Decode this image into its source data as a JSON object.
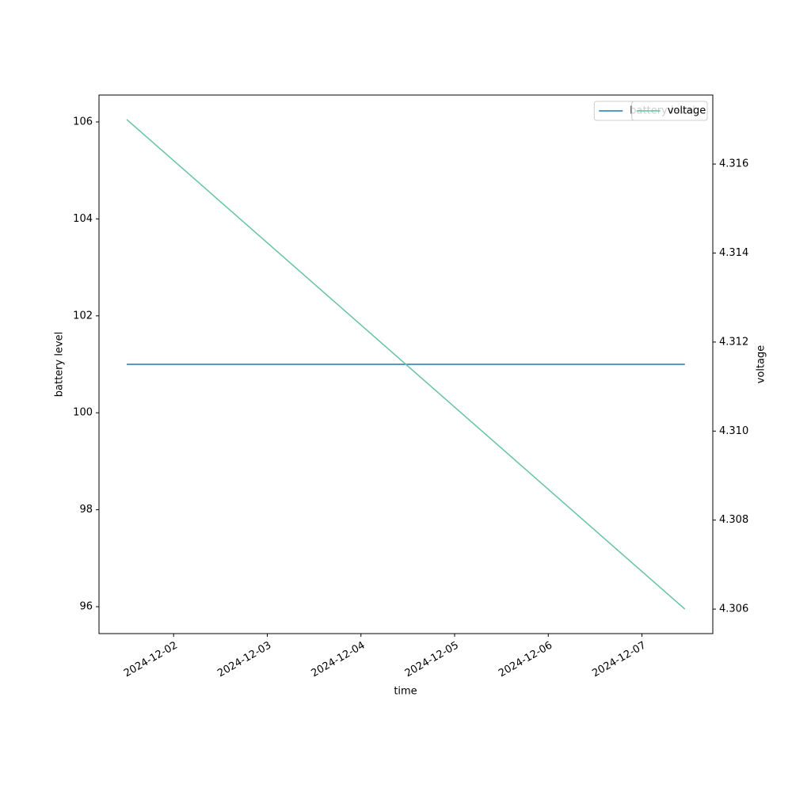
{
  "chart_data": {
    "type": "line",
    "x": [
      "2024-12-01T12:00",
      "2024-12-07T11:00"
    ],
    "series": [
      {
        "name": "battery level",
        "color": "#1f77b4",
        "values": [
          101,
          101
        ]
      },
      {
        "name": "voltage",
        "color": "#66c2a5",
        "values": [
          4.317,
          4.306
        ],
        "axis": "y2"
      }
    ],
    "xlabel": "time",
    "ylabel": "battery level",
    "y2label": "voltage",
    "xlim": [
      "2024-12-01T04:53",
      "2024-12-07T18:09"
    ],
    "xticks": [
      "2024-12-02",
      "2024-12-03",
      "2024-12-04",
      "2024-12-05",
      "2024-12-06",
      "2024-12-07"
    ],
    "ylim": [
      95.445,
      106.555
    ],
    "yticks": [
      96,
      98,
      100,
      102,
      104,
      106
    ],
    "y2lim": [
      4.30545,
      4.31755
    ],
    "y2ticks": [
      4.306,
      4.308,
      {
        "value": 4.31,
        "label": "4.310"
      },
      4.312,
      4.314,
      4.316
    ],
    "legend": "upper right",
    "grid": false
  }
}
